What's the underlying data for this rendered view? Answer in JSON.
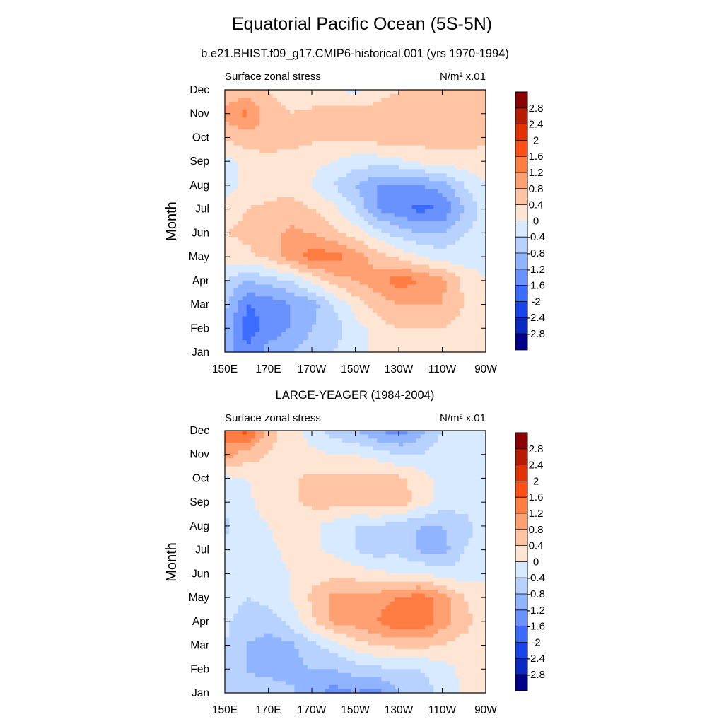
{
  "title": "Equatorial Pacific Ocean (5S-5N)",
  "colorbar": {
    "labels": [
      "2.8",
      "2.4",
      "2",
      "1.6",
      "1.2",
      "0.8",
      "0.4",
      "0",
      "-0.4",
      "-0.8",
      "-1.2",
      "-1.6",
      "-2",
      "-2.4",
      "-2.8"
    ],
    "colors": [
      "#8b0000",
      "#b71c00",
      "#e23200",
      "#ff5018",
      "#ff7c42",
      "#ffa072",
      "#ffc4a4",
      "#ffe6d4",
      "#d8eaff",
      "#b8d2ff",
      "#90b4ff",
      "#6a92ff",
      "#3c6cff",
      "#1844ee",
      "#0a28c2",
      "#00008b"
    ]
  },
  "chart_data": [
    {
      "type": "heatmap",
      "title": "b.e21.BHIST.f09_g17.CMIP6-historical.001 (yrs 1970-1994)",
      "left_label": "Surface zonal stress",
      "units": "N/m² x.01",
      "ylabel": "Month",
      "xticks": [
        "150E",
        "170E",
        "170W",
        "150W",
        "130W",
        "110W",
        "90W"
      ],
      "yticks": [
        "Jan",
        "Feb",
        "Mar",
        "Apr",
        "May",
        "Jun",
        "Jul",
        "Aug",
        "Sep",
        "Oct",
        "Nov",
        "Dec"
      ],
      "xlim": [
        150,
        270
      ],
      "levels": [
        -2.8,
        -2.4,
        -2,
        -1.6,
        -1.2,
        -0.8,
        -0.4,
        0,
        0.4,
        0.8,
        1.2,
        1.6,
        2,
        2.4,
        2.8
      ],
      "lons": [
        150,
        160,
        170,
        180,
        190,
        200,
        210,
        220,
        230,
        240,
        250,
        260,
        270
      ],
      "z": [
        [
          -0.8,
          -1.6,
          -1.0,
          -0.8,
          -0.6,
          -0.4,
          -0.2,
          0.1,
          0.2,
          0.2,
          0.2,
          0.2,
          0.2
        ],
        [
          -0.8,
          -1.8,
          -1.5,
          -1.2,
          -0.8,
          -0.6,
          -0.2,
          0.2,
          0.4,
          0.4,
          0.4,
          0.2,
          0.2
        ],
        [
          -0.7,
          -1.6,
          -1.5,
          -1.2,
          -1.0,
          -0.4,
          0.2,
          0.6,
          0.8,
          0.8,
          0.8,
          0.4,
          0.2
        ],
        [
          -0.4,
          -0.8,
          -0.6,
          -0.4,
          0.1,
          0.6,
          0.8,
          1.0,
          1.4,
          1.2,
          0.9,
          0.3,
          0.0
        ],
        [
          0.2,
          0.3,
          0.5,
          1.0,
          1.4,
          1.4,
          1.0,
          0.6,
          0.3,
          0.0,
          -0.2,
          -0.2,
          -0.2
        ],
        [
          0.4,
          0.5,
          0.6,
          0.9,
          0.8,
          0.5,
          0.2,
          -0.2,
          -0.6,
          -0.8,
          -0.8,
          -0.4,
          -0.2
        ],
        [
          0.2,
          0.4,
          0.5,
          0.6,
          0.4,
          0.1,
          -0.4,
          -1.2,
          -1.5,
          -1.7,
          -1.6,
          -0.8,
          -0.2
        ],
        [
          -0.2,
          0.1,
          0.2,
          0.2,
          0.0,
          -0.4,
          -0.8,
          -1.2,
          -1.3,
          -1.2,
          -1.0,
          -0.4,
          0.0
        ],
        [
          -0.2,
          0.2,
          0.3,
          0.2,
          0.1,
          0.0,
          -0.2,
          -0.2,
          -0.1,
          0.1,
          0.2,
          0.2,
          0.2
        ],
        [
          0.5,
          0.6,
          0.6,
          0.6,
          0.5,
          0.5,
          0.5,
          0.6,
          0.6,
          0.6,
          0.6,
          0.6,
          0.5
        ],
        [
          0.9,
          1.3,
          0.6,
          0.4,
          0.5,
          0.6,
          0.6,
          0.6,
          0.6,
          0.6,
          0.6,
          0.6,
          0.5
        ],
        [
          0.5,
          0.6,
          0.4,
          0.2,
          0.1,
          0.0,
          -0.1,
          0.2,
          0.4,
          0.4,
          0.4,
          0.4,
          0.5
        ]
      ]
    },
    {
      "type": "heatmap",
      "title": "LARGE-YEAGER (1984-2004)",
      "left_label": "Surface zonal stress",
      "units": "N/m² x.01",
      "ylabel": "Month",
      "xticks": [
        "150E",
        "170E",
        "170W",
        "150W",
        "130W",
        "110W",
        "90W"
      ],
      "yticks": [
        "Jan",
        "Feb",
        "Mar",
        "Apr",
        "May",
        "Jun",
        "Jul",
        "Aug",
        "Sep",
        "Oct",
        "Nov",
        "Dec"
      ],
      "xlim": [
        150,
        270
      ],
      "levels": [
        -2.8,
        -2.4,
        -2,
        -1.6,
        -1.2,
        -0.8,
        -0.4,
        0,
        0.4,
        0.8,
        1.2,
        1.6,
        2,
        2.4,
        2.8
      ],
      "lons": [
        150,
        160,
        170,
        180,
        190,
        200,
        210,
        220,
        230,
        240,
        250,
        260,
        270
      ],
      "z": [
        [
          -0.4,
          -0.6,
          -0.5,
          -0.7,
          -1.0,
          -1.4,
          -1.2,
          -1.4,
          -0.8,
          -0.6,
          -0.3,
          0.1,
          0.2
        ],
        [
          -0.4,
          -0.8,
          -1.0,
          -1.0,
          -0.8,
          -0.8,
          -0.6,
          -0.5,
          -0.4,
          -0.4,
          -0.2,
          0.1,
          0.2
        ],
        [
          -0.4,
          -0.8,
          -1.0,
          -0.9,
          -0.5,
          -0.2,
          0.2,
          0.4,
          0.5,
          0.5,
          0.4,
          0.2,
          0.1
        ],
        [
          -0.3,
          -0.6,
          -0.6,
          -0.3,
          0.3,
          0.9,
          1.0,
          1.2,
          1.6,
          1.6,
          1.0,
          0.6,
          0.1
        ],
        [
          -0.2,
          -0.4,
          -0.3,
          0.0,
          0.5,
          0.9,
          1.0,
          1.0,
          1.2,
          1.4,
          1.0,
          0.4,
          0.0
        ],
        [
          -0.1,
          -0.2,
          -0.1,
          0.0,
          0.2,
          0.3,
          0.2,
          0.1,
          0.0,
          0.0,
          -0.2,
          -0.2,
          0.0
        ],
        [
          -0.3,
          -0.2,
          -0.1,
          0.1,
          0.1,
          -0.1,
          -0.4,
          -0.6,
          -0.5,
          -0.9,
          -1.0,
          -0.4,
          -0.2
        ],
        [
          -0.5,
          -0.2,
          0.0,
          0.2,
          0.1,
          -0.2,
          -0.4,
          -0.4,
          -0.6,
          -0.8,
          -0.8,
          -0.6,
          -0.2
        ],
        [
          -0.3,
          -0.1,
          0.2,
          0.3,
          0.5,
          0.6,
          0.5,
          0.6,
          0.7,
          0.2,
          -0.2,
          -0.2,
          0.0
        ],
        [
          -0.1,
          0.0,
          0.2,
          0.3,
          0.5,
          0.5,
          0.5,
          0.6,
          0.5,
          0.2,
          -0.2,
          -0.2,
          0.0
        ],
        [
          1.0,
          0.6,
          0.4,
          0.2,
          0.1,
          0.0,
          0.0,
          -0.2,
          -0.4,
          -0.4,
          -0.2,
          -0.2,
          0.0
        ],
        [
          1.4,
          1.8,
          0.6,
          0.2,
          -0.2,
          -0.6,
          -0.8,
          -1.2,
          -1.4,
          -1.0,
          -0.4,
          -0.1,
          0.0
        ]
      ]
    }
  ]
}
